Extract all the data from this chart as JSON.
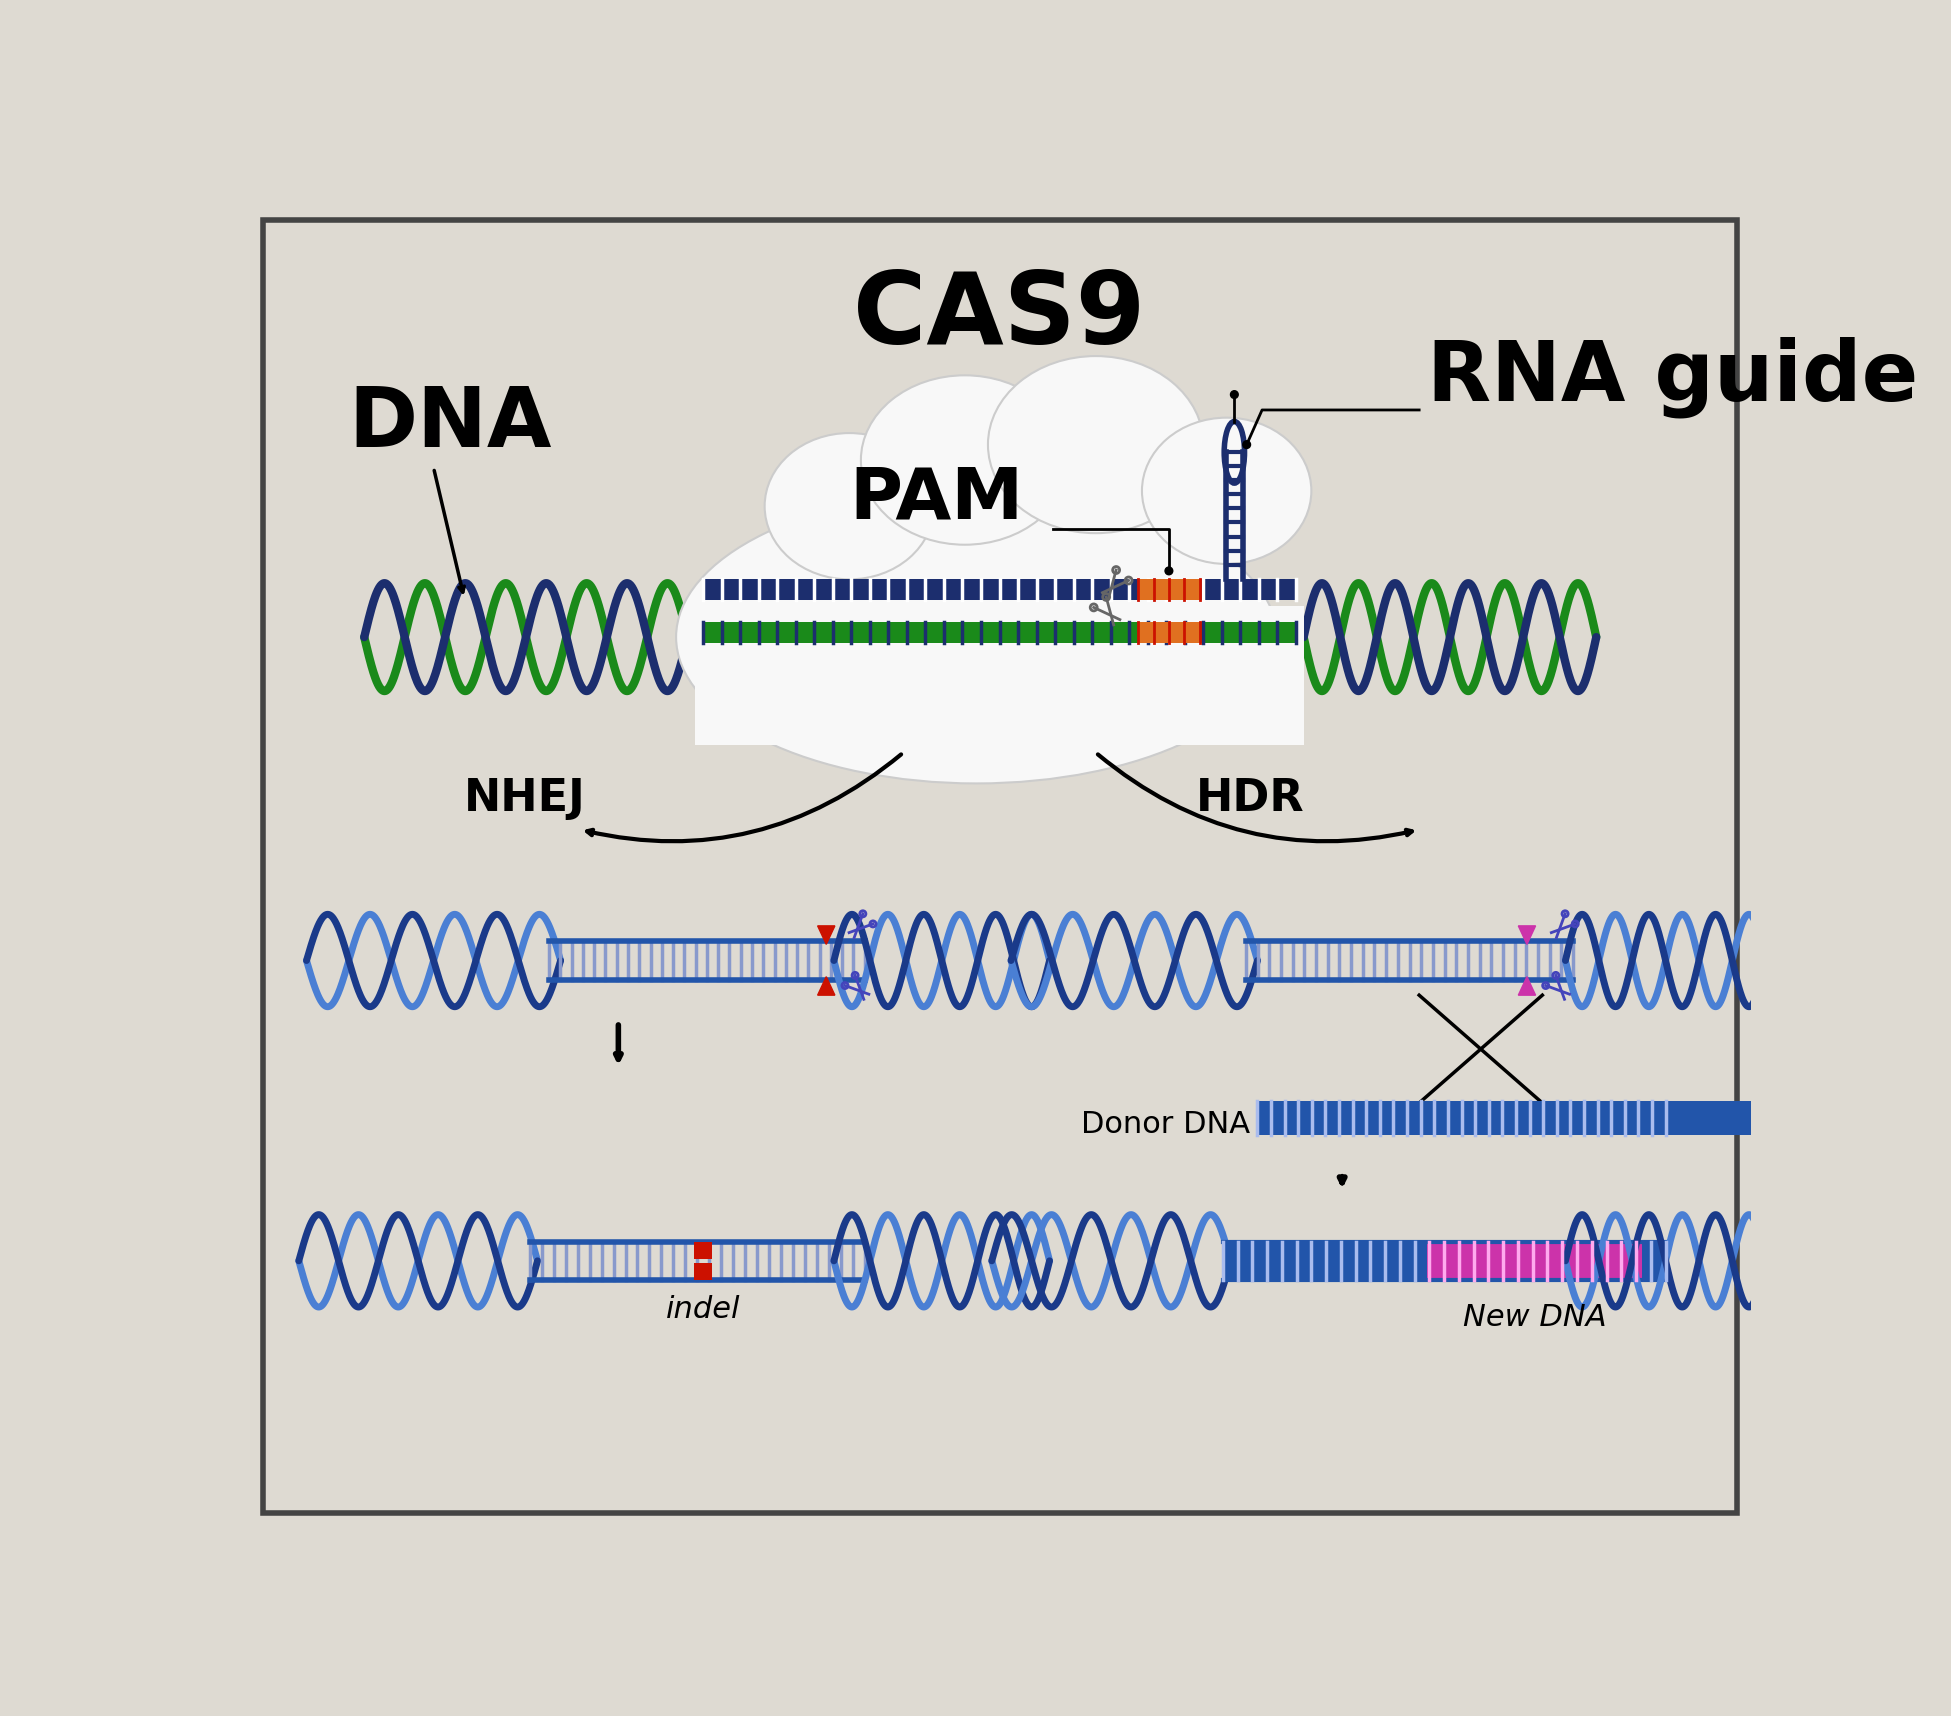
{
  "bg_color": "#dedad2",
  "border_color": "#444444",
  "title_cas9": "CAS9",
  "title_dna": "DNA",
  "title_rna": "RNA guide",
  "title_pam": "PAM",
  "title_nhej": "NHEJ",
  "title_hdr": "HDR",
  "label_indel": "indel",
  "label_donor": "Donor DNA",
  "label_new": "New DNA",
  "green1": "#1a8a1a",
  "green2": "#2db82d",
  "blue_dark": "#1c2e6e",
  "blue_mid": "#2255aa",
  "blue_light": "#4a7fd4",
  "blue_helix1": "#4a7fd4",
  "blue_helix2": "#1a3a8a",
  "orange": "#e07020",
  "red": "#cc1100",
  "magenta": "#cc33aa",
  "white": "#ffffff",
  "black": "#000000",
  "cloud_white": "#f8f8f8",
  "scissors_blue": "#4444bb",
  "scissors_gray": "#666666"
}
